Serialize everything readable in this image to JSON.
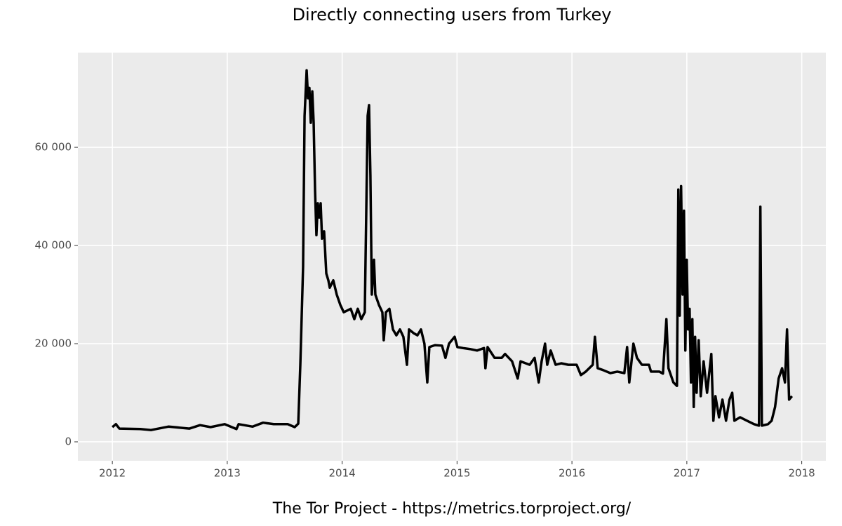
{
  "chart_data": {
    "type": "line",
    "title": "Directly connecting users from Turkey",
    "caption": "The Tor Project - https://metrics.torproject.org/",
    "x": [
      2012.0,
      2012.031,
      2012.061,
      2012.244,
      2012.336,
      2012.488,
      2012.671,
      2012.763,
      2012.855,
      2012.977,
      2013.08,
      2013.099,
      2013.221,
      2013.312,
      2013.404,
      2013.526,
      2013.587,
      2013.618,
      2013.636,
      2013.66,
      2013.673,
      2013.691,
      2013.703,
      2013.715,
      2013.727,
      2013.74,
      2013.752,
      2013.764,
      2013.776,
      2013.788,
      2013.801,
      2013.813,
      2013.825,
      2013.843,
      2013.862,
      2013.88,
      2013.892,
      2013.923,
      2013.953,
      2013.984,
      2014.014,
      2014.075,
      2014.106,
      2014.136,
      2014.167,
      2014.197,
      2014.21,
      2014.222,
      2014.234,
      2014.246,
      2014.258,
      2014.277,
      2014.289,
      2014.32,
      2014.35,
      2014.362,
      2014.381,
      2014.411,
      2014.442,
      2014.472,
      2014.503,
      2014.533,
      2014.564,
      2014.582,
      2014.625,
      2014.655,
      2014.686,
      2014.716,
      2014.741,
      2014.759,
      2014.808,
      2014.869,
      2014.899,
      2014.93,
      2014.979,
      2015.003,
      2015.052,
      2015.113,
      2015.174,
      2015.235,
      2015.247,
      2015.266,
      2015.327,
      2015.388,
      2015.418,
      2015.479,
      2015.528,
      2015.553,
      2015.632,
      2015.675,
      2015.711,
      2015.736,
      2015.766,
      2015.785,
      2015.815,
      2015.858,
      2015.907,
      2015.968,
      2016.041,
      2016.078,
      2016.12,
      2016.181,
      2016.2,
      2016.224,
      2016.273,
      2016.334,
      2016.395,
      2016.456,
      2016.48,
      2016.499,
      2016.535,
      2016.566,
      2016.609,
      2016.67,
      2016.688,
      2016.761,
      2016.792,
      2016.822,
      2016.84,
      2016.883,
      2016.914,
      2016.926,
      2016.938,
      2016.95,
      2016.963,
      2016.975,
      2016.987,
      2016.999,
      2017.011,
      2017.024,
      2017.036,
      2017.048,
      2017.06,
      2017.072,
      2017.085,
      2017.103,
      2017.121,
      2017.146,
      2017.176,
      2017.213,
      2017.231,
      2017.249,
      2017.28,
      2017.31,
      2017.341,
      2017.371,
      2017.395,
      2017.414,
      2017.463,
      2017.524,
      2017.585,
      2017.628,
      2017.64,
      2017.653,
      2017.707,
      2017.738,
      2017.768,
      2017.799,
      2017.829,
      2017.854,
      2017.872,
      2017.89,
      2017.915
    ],
    "series": [
      {
        "color": "#000000",
        "values": [
          3000,
          3600,
          2700,
          2600,
          2400,
          3100,
          2700,
          3400,
          3000,
          3600,
          2600,
          3600,
          3100,
          3900,
          3600,
          3600,
          3000,
          3700,
          15700,
          35700,
          66400,
          75700,
          70000,
          72100,
          65000,
          71400,
          65000,
          51400,
          42100,
          48600,
          45700,
          48600,
          41400,
          42900,
          34300,
          32900,
          31400,
          32900,
          30000,
          27900,
          26400,
          27100,
          25000,
          27100,
          25000,
          26400,
          47100,
          66400,
          68600,
          54300,
          30000,
          37100,
          30000,
          27900,
          26400,
          20700,
          26400,
          27100,
          22900,
          21700,
          22900,
          21400,
          15700,
          22900,
          22100,
          21700,
          22900,
          20000,
          12100,
          19300,
          19700,
          19600,
          17100,
          20000,
          21400,
          19300,
          19100,
          18900,
          18600,
          19100,
          15000,
          19300,
          17100,
          17100,
          17900,
          16400,
          12900,
          16400,
          15700,
          17100,
          12100,
          16400,
          20000,
          15700,
          18600,
          15700,
          16000,
          15700,
          15700,
          13600,
          14300,
          15700,
          21400,
          15000,
          14600,
          14000,
          14300,
          14000,
          19300,
          12100,
          20000,
          17100,
          15700,
          15700,
          14300,
          14300,
          13900,
          25000,
          15000,
          12100,
          11400,
          51400,
          25700,
          52100,
          30000,
          47100,
          18600,
          37100,
          22900,
          27100,
          12100,
          25000,
          7100,
          21400,
          10000,
          20700,
          9300,
          16400,
          10000,
          17900,
          4300,
          9300,
          5000,
          8600,
          4300,
          8600,
          10000,
          4300,
          5000,
          4300,
          3600,
          3300,
          47900,
          3300,
          3600,
          4300,
          7100,
          12900,
          15000,
          12100,
          22900,
          8600,
          9300
        ]
      }
    ],
    "xlim": [
      2011.7,
      2018.21
    ],
    "ylim": [
      -3860,
      79300
    ],
    "xticks": [
      2012,
      2013,
      2014,
      2015,
      2016,
      2017,
      2018
    ],
    "yticks": [
      0,
      {
        "value": 20000,
        "label": "20 000"
      },
      {
        "value": 40000,
        "label": "40 000"
      },
      {
        "value": 60000,
        "label": "60 000"
      }
    ],
    "grid": true
  }
}
